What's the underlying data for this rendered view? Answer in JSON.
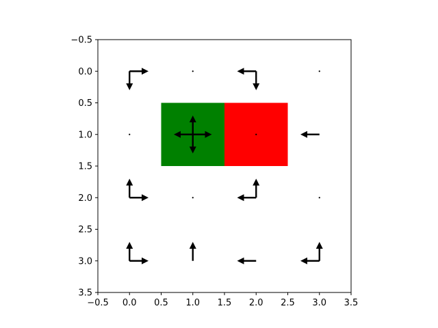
{
  "chart_data": {
    "type": "heatmap",
    "title": "",
    "xlabel": "",
    "ylabel": "",
    "xlim": [
      -0.5,
      3.5
    ],
    "ylim": [
      3.5,
      -0.5
    ],
    "y_inverted": true,
    "grid": false,
    "xticks": [
      -0.5,
      0.0,
      0.5,
      1.0,
      1.5,
      2.0,
      2.5,
      3.0,
      3.5
    ],
    "yticks": [
      -0.5,
      0.0,
      0.5,
      1.0,
      1.5,
      2.0,
      2.5,
      3.0,
      3.5
    ],
    "xtick_labels": [
      "−0.5",
      "0.0",
      "0.5",
      "1.0",
      "1.5",
      "2.0",
      "2.5",
      "3.0",
      "3.5"
    ],
    "ytick_labels": [
      "−0.5",
      "0.0",
      "0.5",
      "1.0",
      "1.5",
      "2.0",
      "2.5",
      "3.0",
      "3.5"
    ],
    "cells": [
      {
        "col": 1,
        "row": 1,
        "color": "#008000"
      },
      {
        "col": 2,
        "row": 1,
        "color": "#ff0000"
      }
    ],
    "policy_arrows": [
      {
        "col": 0,
        "row": 0,
        "directions": [
          "right",
          "down"
        ]
      },
      {
        "col": 1,
        "row": 0,
        "directions": []
      },
      {
        "col": 2,
        "row": 0,
        "directions": [
          "left",
          "down"
        ]
      },
      {
        "col": 3,
        "row": 0,
        "directions": []
      },
      {
        "col": 0,
        "row": 1,
        "directions": []
      },
      {
        "col": 1,
        "row": 1,
        "directions": [
          "up",
          "down",
          "left",
          "right"
        ]
      },
      {
        "col": 2,
        "row": 1,
        "directions": []
      },
      {
        "col": 3,
        "row": 1,
        "directions": [
          "left"
        ]
      },
      {
        "col": 0,
        "row": 2,
        "directions": [
          "up",
          "right"
        ]
      },
      {
        "col": 1,
        "row": 2,
        "directions": []
      },
      {
        "col": 2,
        "row": 2,
        "directions": [
          "left",
          "up"
        ]
      },
      {
        "col": 3,
        "row": 2,
        "directions": []
      },
      {
        "col": 0,
        "row": 3,
        "directions": [
          "up",
          "right"
        ]
      },
      {
        "col": 1,
        "row": 3,
        "directions": [
          "up"
        ]
      },
      {
        "col": 2,
        "row": 3,
        "directions": [
          "left"
        ]
      },
      {
        "col": 3,
        "row": 3,
        "directions": [
          "left",
          "up"
        ]
      }
    ]
  }
}
